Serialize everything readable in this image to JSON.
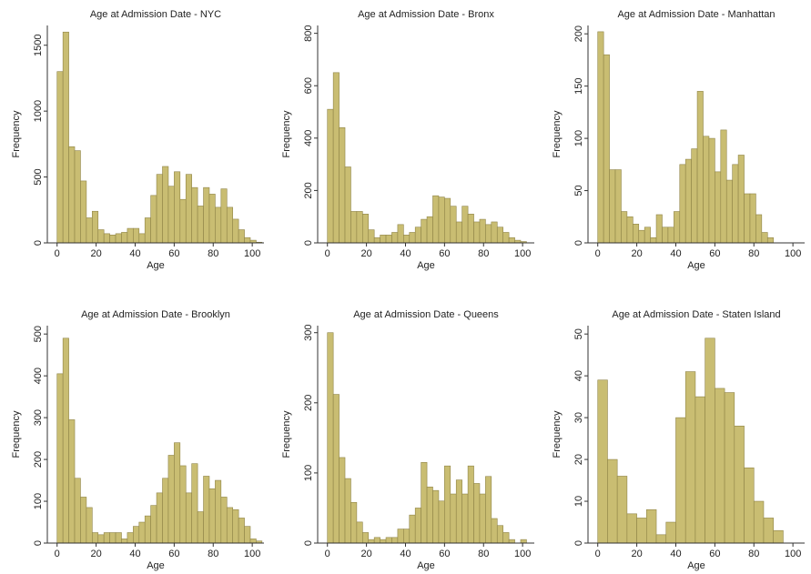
{
  "chart_data": [
    {
      "type": "histogram",
      "title": "Age at Admission Date - NYC",
      "x_label": "Age",
      "y_label": "Frequency",
      "color": "#c9bd72",
      "bins": [
        0,
        3,
        6,
        9,
        12,
        15,
        18,
        21,
        24,
        27,
        30,
        33,
        36,
        39,
        42,
        45,
        48,
        51,
        54,
        57,
        60,
        63,
        66,
        69,
        72,
        75,
        78,
        81,
        84,
        87,
        90,
        93,
        96,
        99,
        102,
        105
      ],
      "counts": [
        1300,
        1600,
        730,
        700,
        470,
        190,
        240,
        100,
        70,
        60,
        70,
        80,
        110,
        110,
        70,
        190,
        360,
        520,
        580,
        430,
        540,
        330,
        520,
        420,
        280,
        420,
        370,
        270,
        410,
        270,
        180,
        100,
        40,
        20,
        5
      ],
      "xlim": [
        -5,
        106
      ],
      "xticks": [
        0,
        20,
        40,
        60,
        80,
        100
      ],
      "ylim": [
        0,
        1650
      ],
      "yticks": [
        0,
        500,
        1000,
        1500
      ]
    },
    {
      "type": "histogram",
      "title": "Age at Admission Date - Bronx",
      "x_label": "Age",
      "y_label": "Frequency",
      "color": "#c9bd72",
      "bins": [
        0,
        3,
        6,
        9,
        12,
        15,
        18,
        21,
        24,
        27,
        30,
        33,
        36,
        39,
        42,
        45,
        48,
        51,
        54,
        57,
        60,
        63,
        66,
        69,
        72,
        75,
        78,
        81,
        84,
        87,
        90,
        93,
        96,
        99,
        102,
        105
      ],
      "counts": [
        510,
        650,
        440,
        290,
        120,
        120,
        110,
        50,
        20,
        30,
        30,
        40,
        70,
        30,
        40,
        60,
        90,
        100,
        180,
        175,
        170,
        140,
        80,
        140,
        110,
        80,
        90,
        70,
        80,
        60,
        40,
        20,
        10,
        5,
        0
      ],
      "xlim": [
        -5,
        106
      ],
      "xticks": [
        0,
        20,
        40,
        60,
        80,
        100
      ],
      "ylim": [
        0,
        830
      ],
      "yticks": [
        0,
        200,
        400,
        600,
        800
      ]
    },
    {
      "type": "histogram",
      "title": "Age at Admission Date - Manhattan",
      "x_label": "Age",
      "y_label": "Frequency",
      "color": "#c9bd72",
      "bins": [
        0,
        3,
        6,
        9,
        12,
        15,
        18,
        21,
        24,
        27,
        30,
        33,
        36,
        39,
        42,
        45,
        48,
        51,
        54,
        57,
        60,
        63,
        66,
        69,
        72,
        75,
        78,
        81,
        84,
        87,
        90,
        93,
        96,
        99,
        102,
        105
      ],
      "counts": [
        202,
        180,
        70,
        70,
        30,
        25,
        18,
        12,
        15,
        5,
        27,
        15,
        15,
        30,
        75,
        80,
        90,
        145,
        102,
        100,
        68,
        108,
        60,
        75,
        84,
        47,
        47,
        27,
        10,
        5,
        0,
        0,
        0,
        0,
        0
      ],
      "xlim": [
        -5,
        106
      ],
      "xticks": [
        0,
        20,
        40,
        60,
        80,
        100
      ],
      "ylim": [
        0,
        208
      ],
      "yticks": [
        0,
        50,
        100,
        150,
        200
      ]
    },
    {
      "type": "histogram",
      "title": "Age at Admission Date - Brooklyn",
      "x_label": "Age",
      "y_label": "Frequency",
      "color": "#c9bd72",
      "bins": [
        0,
        3,
        6,
        9,
        12,
        15,
        18,
        21,
        24,
        27,
        30,
        33,
        36,
        39,
        42,
        45,
        48,
        51,
        54,
        57,
        60,
        63,
        66,
        69,
        72,
        75,
        78,
        81,
        84,
        87,
        90,
        93,
        96,
        99,
        102,
        105
      ],
      "counts": [
        405,
        490,
        295,
        155,
        110,
        85,
        25,
        20,
        25,
        25,
        25,
        10,
        25,
        40,
        50,
        65,
        90,
        120,
        155,
        210,
        240,
        185,
        120,
        190,
        75,
        160,
        130,
        150,
        110,
        85,
        80,
        60,
        40,
        10,
        5
      ],
      "xlim": [
        -5,
        106
      ],
      "xticks": [
        0,
        20,
        40,
        60,
        80,
        100
      ],
      "ylim": [
        0,
        520
      ],
      "yticks": [
        0,
        100,
        200,
        300,
        400,
        500
      ]
    },
    {
      "type": "histogram",
      "title": "Age at Admission Date - Queens",
      "x_label": "Age",
      "y_label": "Frequency",
      "color": "#c9bd72",
      "bins": [
        0,
        3,
        6,
        9,
        12,
        15,
        18,
        21,
        24,
        27,
        30,
        33,
        36,
        39,
        42,
        45,
        48,
        51,
        54,
        57,
        60,
        63,
        66,
        69,
        72,
        75,
        78,
        81,
        84,
        87,
        90,
        93,
        96,
        99,
        102,
        105
      ],
      "counts": [
        300,
        212,
        122,
        92,
        58,
        30,
        15,
        5,
        8,
        5,
        8,
        8,
        20,
        20,
        40,
        50,
        115,
        80,
        75,
        60,
        110,
        70,
        90,
        70,
        110,
        85,
        70,
        95,
        35,
        25,
        15,
        5,
        0,
        5,
        0
      ],
      "xlim": [
        -5,
        106
      ],
      "xticks": [
        0,
        20,
        40,
        60,
        80,
        100
      ],
      "ylim": [
        0,
        310
      ],
      "yticks": [
        0,
        100,
        200,
        300
      ]
    },
    {
      "type": "histogram",
      "title": "Age at Admission Date - Staten Island",
      "x_label": "Age",
      "y_label": "Frequency",
      "color": "#c9bd72",
      "bins": [
        0,
        5,
        10,
        15,
        20,
        25,
        30,
        35,
        40,
        45,
        50,
        55,
        60,
        65,
        70,
        75,
        80,
        85,
        90,
        95
      ],
      "counts": [
        39,
        20,
        16,
        7,
        6,
        8,
        2,
        5,
        30,
        41,
        35,
        49,
        37,
        36,
        28,
        18,
        10,
        6,
        3
      ],
      "xlim": [
        -5,
        106
      ],
      "xticks": [
        0,
        20,
        40,
        60,
        80,
        100
      ],
      "ylim": [
        0,
        52
      ],
      "yticks": [
        0,
        10,
        20,
        30,
        40,
        50
      ]
    }
  ]
}
